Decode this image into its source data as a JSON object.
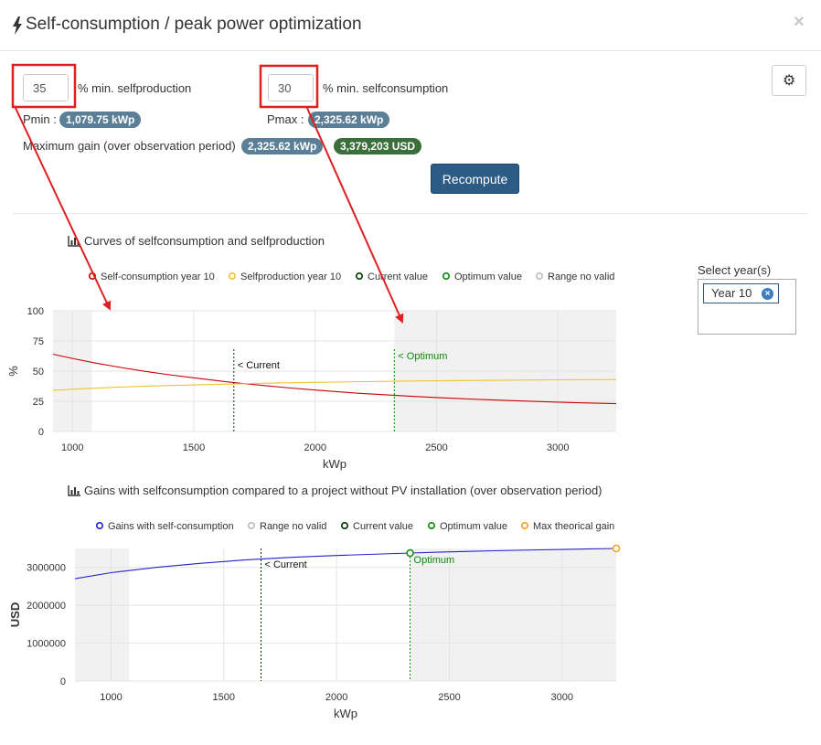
{
  "header": {
    "title": "Self-consumption / peak power optimization",
    "close_glyph": "×"
  },
  "form": {
    "selfproduction": {
      "value": "35",
      "label": "% min. selfproduction"
    },
    "selfconsumption": {
      "value": "30",
      "label": "% min. selfconsumption"
    },
    "pmin_label": "Pmin :",
    "pmin_value": "1,079.75 kWp",
    "pmax_label": "Pmax :",
    "pmax_value": "2,325.62 kWp",
    "max_gain_label": "Maximum gain (over observation period)",
    "max_gain_power": "2,325.62 kWp",
    "max_gain_money": "3,379,203 USD",
    "recompute_label": "Recompute",
    "settings_icon": "gear-icon"
  },
  "year_select": {
    "label": "Select year(s)",
    "selected": "Year 10"
  },
  "colors": {
    "badge_blue": "#5b7f96",
    "badge_green": "#3a6e3a",
    "button": "#2c5b86",
    "annotation_red": "#e02020",
    "selfconsumption": "#cc0000",
    "selfproduction": "#f2c12e",
    "current": "#003300",
    "optimum": "#0a8a0a",
    "range_no_valid": "#bbbbbb",
    "gains": "#2222cc",
    "max_gain": "#f0a020"
  },
  "chart_data": [
    {
      "type": "line",
      "title": "Curves of selfconsumption and selfproduction",
      "icon": "bar-chart-icon",
      "xlabel": "kWp",
      "ylabel": "%",
      "xlim": [
        920,
        3240
      ],
      "ylim": [
        0,
        100
      ],
      "xticks": [
        1000,
        1500,
        2000,
        2500,
        3000
      ],
      "yticks": [
        0,
        25,
        50,
        75,
        100
      ],
      "grid": true,
      "legend_position": "top",
      "legend": [
        "Self-consumption year 10",
        "Selfproduction year 10",
        "Current value",
        "Optimum value",
        "Range no valid"
      ],
      "invalid_ranges": [
        [
          920,
          1080
        ],
        [
          2326,
          3240
        ]
      ],
      "current_x": 1665,
      "current_label": "< Current",
      "optimum_x": 2326,
      "optimum_label": "< Optimum",
      "series": [
        {
          "name": "Self-consumption year 10",
          "color": "#cc0000",
          "x": [
            920,
            1000,
            1100,
            1200,
            1300,
            1400,
            1500,
            1600,
            1700,
            1800,
            1900,
            2000,
            2100,
            2200,
            2300,
            2400,
            2500,
            2600,
            2700,
            2800,
            2900,
            3000,
            3100,
            3240
          ],
          "y": [
            64,
            60.5,
            56.5,
            53,
            49.8,
            47,
            44.5,
            42,
            39.8,
            37.8,
            36,
            34.3,
            32.8,
            31.4,
            30.2,
            29.1,
            28.1,
            27.2,
            26.4,
            25.6,
            24.9,
            24.3,
            23.7,
            23
          ]
        },
        {
          "name": "Selfproduction year 10",
          "color": "#f2c12e",
          "x": [
            920,
            1000,
            1200,
            1400,
            1600,
            1800,
            2000,
            2200,
            2400,
            2600,
            2800,
            3000,
            3240
          ],
          "y": [
            34,
            35,
            36.8,
            38.1,
            39.1,
            40,
            40.7,
            41.3,
            41.8,
            42.2,
            42.5,
            42.8,
            43
          ]
        }
      ]
    },
    {
      "type": "line",
      "title": "Gains with selfconsumption compared to a project without PV installation (over observation period)",
      "icon": "bar-chart-icon",
      "xlabel": "kWp",
      "ylabel": "USD",
      "xlim": [
        840,
        3240
      ],
      "ylim": [
        0,
        3500000
      ],
      "xticks": [
        1000,
        1500,
        2000,
        2500,
        3000
      ],
      "yticks": [
        0,
        1000000,
        2000000,
        3000000
      ],
      "grid": true,
      "legend_position": "top",
      "legend": [
        "Gains with self-consumption",
        "Range no valid",
        "Current value",
        "Optimum value",
        "Max theorical gain"
      ],
      "invalid_ranges": [
        [
          840,
          1080
        ],
        [
          2326,
          3240
        ]
      ],
      "current_x": 1665,
      "current_label": "< Current",
      "optimum_x": 2326,
      "optimum_y": 3379203,
      "optimum_label": "Optimum",
      "max_gain_x": 3240,
      "max_gain_y": 3500000,
      "series": [
        {
          "name": "Gains with self-consumption",
          "color": "#2222cc",
          "x": [
            840,
            1000,
            1200,
            1400,
            1600,
            1800,
            2000,
            2200,
            2326,
            2500,
            2700,
            2900,
            3100,
            3240
          ],
          "y": [
            2700000,
            2860000,
            3000000,
            3110000,
            3200000,
            3265000,
            3315000,
            3355000,
            3379203,
            3410000,
            3440000,
            3465000,
            3485000,
            3500000
          ]
        }
      ]
    }
  ]
}
